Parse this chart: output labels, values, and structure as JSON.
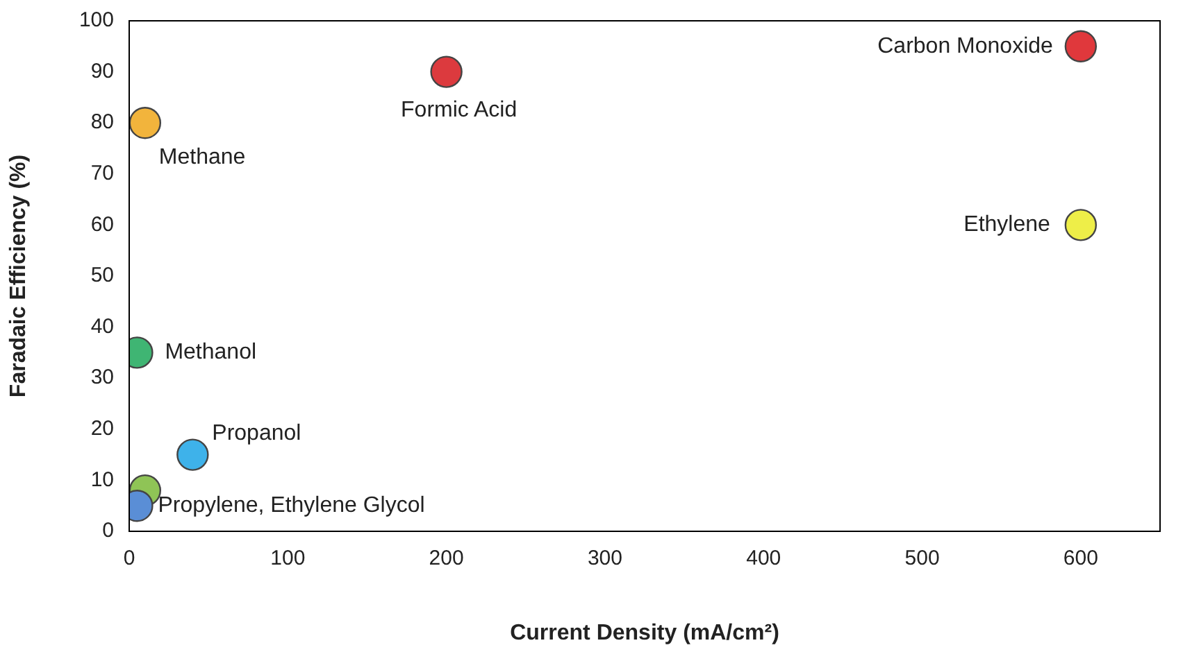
{
  "chart_data": {
    "type": "scatter",
    "xlabel": "Current Density (mA/cm²)",
    "ylabel": "Faradaic Efficiency (%)",
    "x": [
      600,
      200,
      10,
      600,
      5,
      40,
      10,
      5
    ],
    "values": [
      95,
      90,
      80,
      60,
      35,
      15,
      8,
      5
    ],
    "colors": [
      "#e0383c",
      "#dc3a3e",
      "#f2b43c",
      "#eeee48",
      "#3fb573",
      "#3eb2ea",
      "#8fc456",
      "#5a8ed6"
    ],
    "xlim": [
      0,
      650
    ],
    "xticks": [
      0,
      100,
      200,
      300,
      400,
      500,
      600
    ],
    "ylim": [
      0,
      100
    ],
    "yticks": [
      0,
      10,
      20,
      30,
      40,
      50,
      60,
      70,
      80,
      90,
      100
    ],
    "grid": false,
    "legend": false,
    "marker": "circle",
    "annotations": [
      {
        "text": "Carbon Monoxide",
        "x": 600,
        "y": 95
      },
      {
        "text": "Formic Acid",
        "x": 200,
        "y": 90
      },
      {
        "text": "Methane",
        "x": 10,
        "y": 80
      },
      {
        "text": "Ethylene",
        "x": 600,
        "y": 60
      },
      {
        "text": "Methanol",
        "x": 5,
        "y": 35
      },
      {
        "text": "Propanol",
        "x": 40,
        "y": 15
      },
      {
        "text": "Propylene, Ethylene Glycol",
        "x": 5,
        "y": 5
      }
    ]
  }
}
